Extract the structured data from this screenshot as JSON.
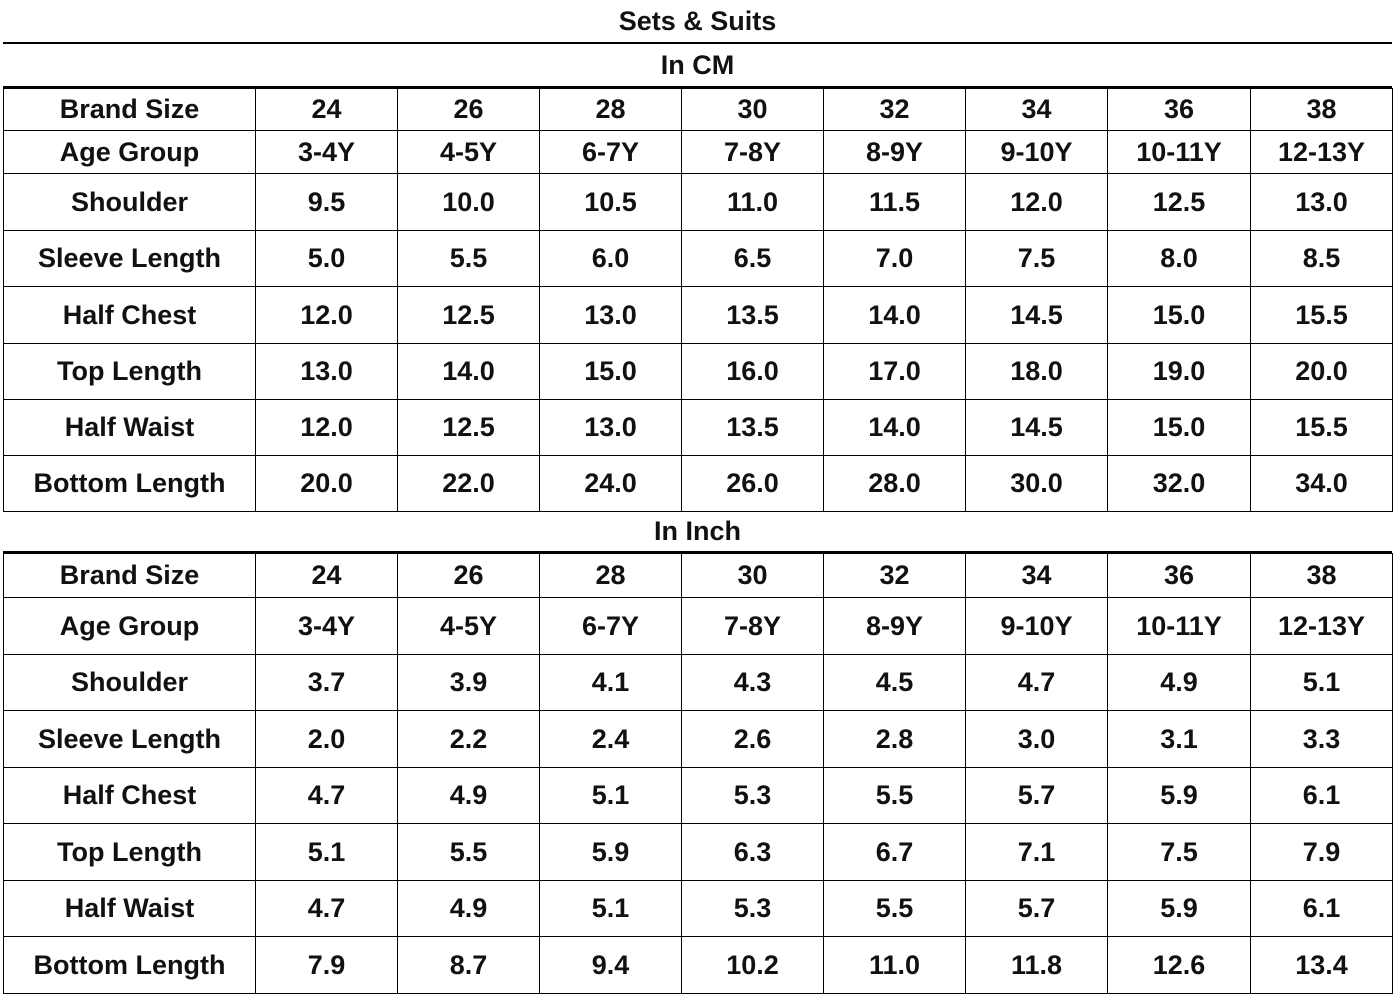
{
  "title": "Sets & Suits",
  "sections": [
    {
      "heading": "In CM",
      "rows": [
        {
          "label": "Brand Size",
          "cells": [
            "24",
            "26",
            "28",
            "30",
            "32",
            "34",
            "36",
            "38"
          ]
        },
        {
          "label": "Age Group",
          "cells": [
            "3-4Y",
            "4-5Y",
            "6-7Y",
            "7-8Y",
            "8-9Y",
            "9-10Y",
            "10-11Y",
            "12-13Y"
          ]
        },
        {
          "label": "Shoulder",
          "cells": [
            "9.5",
            "10.0",
            "10.5",
            "11.0",
            "11.5",
            "12.0",
            "12.5",
            "13.0"
          ]
        },
        {
          "label": "Sleeve Length",
          "cells": [
            "5.0",
            "5.5",
            "6.0",
            "6.5",
            "7.0",
            "7.5",
            "8.0",
            "8.5"
          ]
        },
        {
          "label": "Half Chest",
          "cells": [
            "12.0",
            "12.5",
            "13.0",
            "13.5",
            "14.0",
            "14.5",
            "15.0",
            "15.5"
          ]
        },
        {
          "label": "Top Length",
          "cells": [
            "13.0",
            "14.0",
            "15.0",
            "16.0",
            "17.0",
            "18.0",
            "19.0",
            "20.0"
          ]
        },
        {
          "label": "Half Waist",
          "cells": [
            "12.0",
            "12.5",
            "13.0",
            "13.5",
            "14.0",
            "14.5",
            "15.0",
            "15.5"
          ]
        },
        {
          "label": "Bottom Length",
          "cells": [
            "20.0",
            "22.0",
            "24.0",
            "26.0",
            "28.0",
            "30.0",
            "32.0",
            "34.0"
          ]
        }
      ]
    },
    {
      "heading": "In Inch",
      "rows": [
        {
          "label": "Brand Size",
          "cells": [
            "24",
            "26",
            "28",
            "30",
            "32",
            "34",
            "36",
            "38"
          ]
        },
        {
          "label": "Age Group",
          "cells": [
            "3-4Y",
            "4-5Y",
            "6-7Y",
            "7-8Y",
            "8-9Y",
            "9-10Y",
            "10-11Y",
            "12-13Y"
          ]
        },
        {
          "label": "Shoulder",
          "cells": [
            "3.7",
            "3.9",
            "4.1",
            "4.3",
            "4.5",
            "4.7",
            "4.9",
            "5.1"
          ]
        },
        {
          "label": "Sleeve Length",
          "cells": [
            "2.0",
            "2.2",
            "2.4",
            "2.6",
            "2.8",
            "3.0",
            "3.1",
            "3.3"
          ]
        },
        {
          "label": "Half Chest",
          "cells": [
            "4.7",
            "4.9",
            "5.1",
            "5.3",
            "5.5",
            "5.7",
            "5.9",
            "6.1"
          ]
        },
        {
          "label": "Top Length",
          "cells": [
            "5.1",
            "5.5",
            "5.9",
            "6.3",
            "6.7",
            "7.1",
            "7.5",
            "7.9"
          ]
        },
        {
          "label": "Half Waist",
          "cells": [
            "4.7",
            "4.9",
            "5.1",
            "5.3",
            "5.5",
            "5.7",
            "5.9",
            "6.1"
          ]
        },
        {
          "label": "Bottom Length",
          "cells": [
            "7.9",
            "8.7",
            "9.4",
            "10.2",
            "11.0",
            "11.8",
            "12.6",
            "13.4"
          ]
        }
      ]
    }
  ]
}
